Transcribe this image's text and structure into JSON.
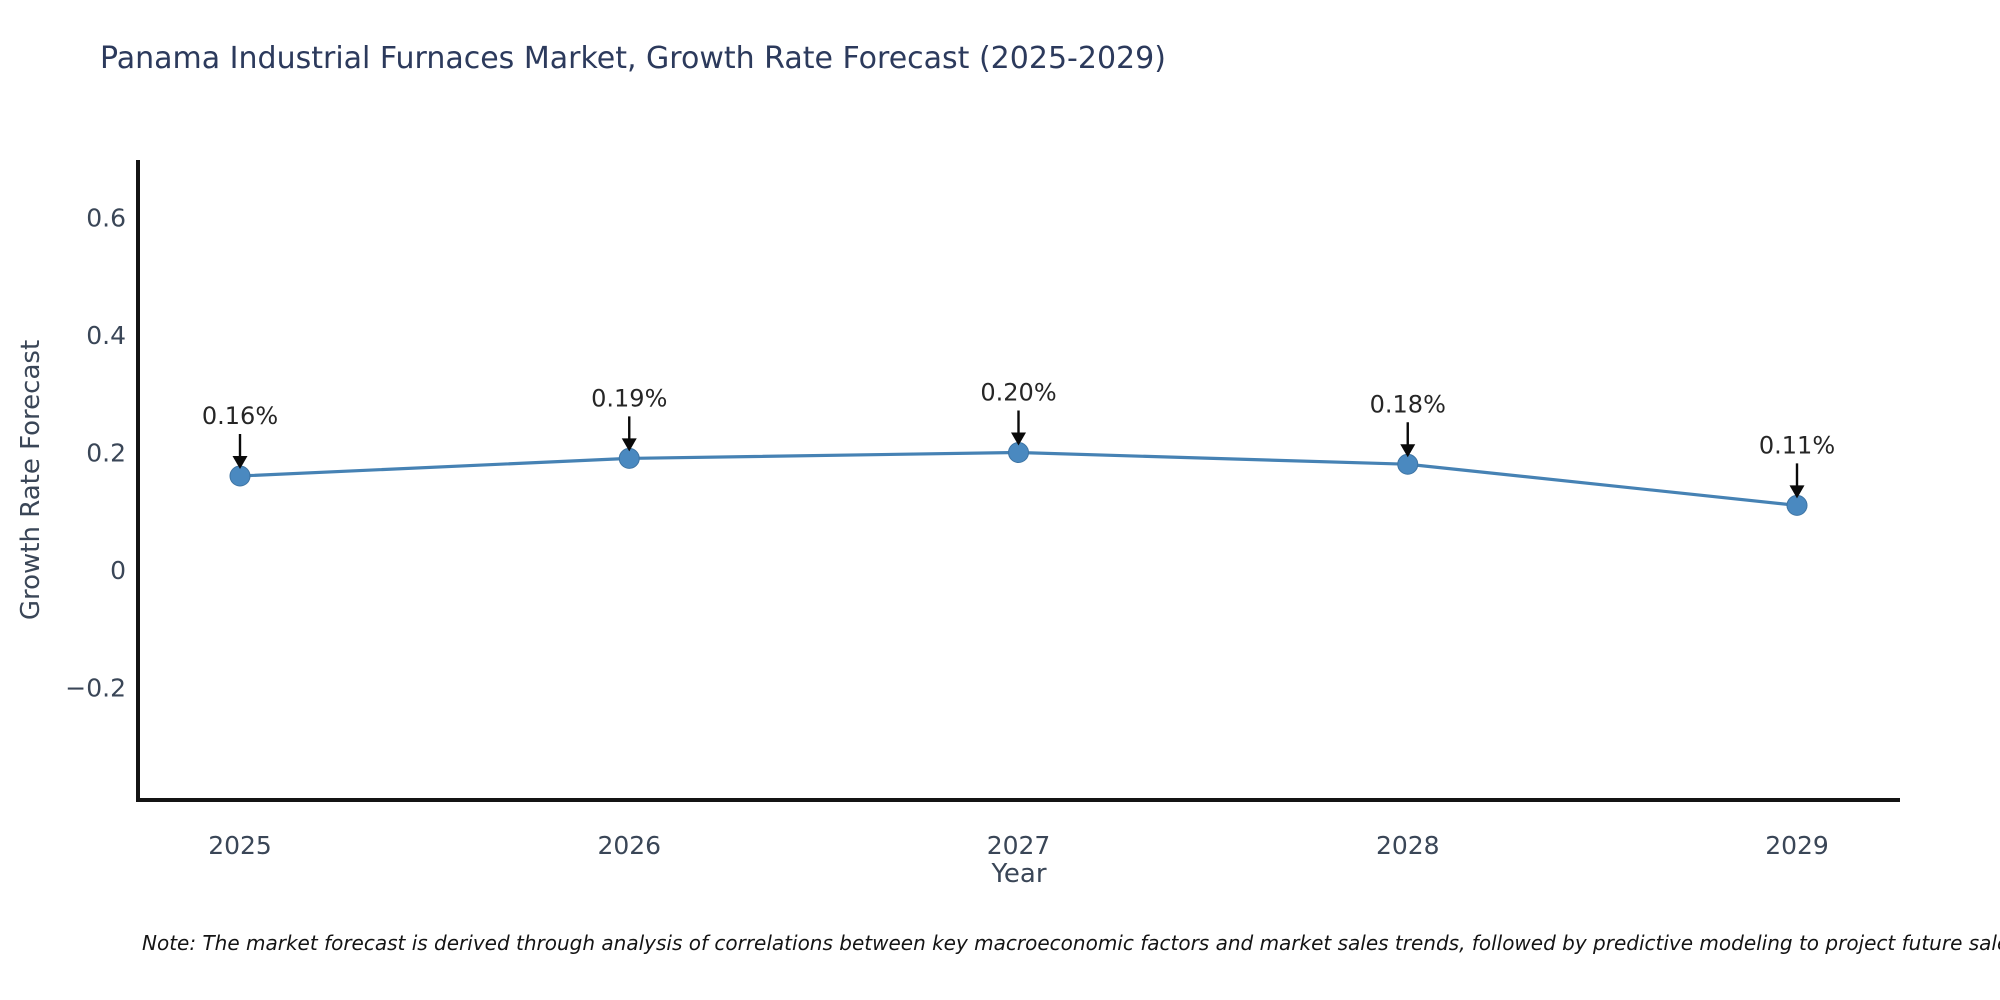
{
  "figure": {
    "note": "Note: The market forecast is derived through analysis of correlations between key macroeconomic factors and market sales trends, followed by predictive modeling to project future sales"
  },
  "chart_data": {
    "type": "line",
    "title": "Panama Industrial Furnaces Market, Growth Rate Forecast (2025-2029)",
    "xlabel": "Year",
    "ylabel": "Growth Rate Forecast",
    "x": [
      2025,
      2026,
      2027,
      2028,
      2029
    ],
    "x_tick_labels": [
      "2025",
      "2026",
      "2027",
      "2028",
      "2029"
    ],
    "series": [
      {
        "name": "Growth Rate Forecast",
        "values": [
          0.16,
          0.19,
          0.2,
          0.18,
          0.11
        ]
      }
    ],
    "point_labels": [
      "0.16%",
      "0.19%",
      "0.20%",
      "0.18%",
      "0.11%"
    ],
    "y_ticks": [
      0.6,
      0.4,
      0.2,
      0,
      -0.2
    ],
    "y_tick_labels": [
      "0.6",
      "0.4",
      "0.2",
      "0",
      "−0.2"
    ],
    "ylim": [
      -0.39,
      0.7
    ],
    "grid": false,
    "legend": false,
    "marker_style": "circle",
    "annotation_arrow": "down-arrow",
    "colors": {
      "line": "#4682b4",
      "marker": "#4a89c0",
      "marker_edge": "#3e74a3",
      "spine": "#141414",
      "title_text": "#2c3a5c",
      "tick_text": "#3a4657",
      "axis_label_text": "#3a4657",
      "annotation_text": "#262626",
      "arrow": "#0a0a0a",
      "note_text": "#141414"
    }
  }
}
